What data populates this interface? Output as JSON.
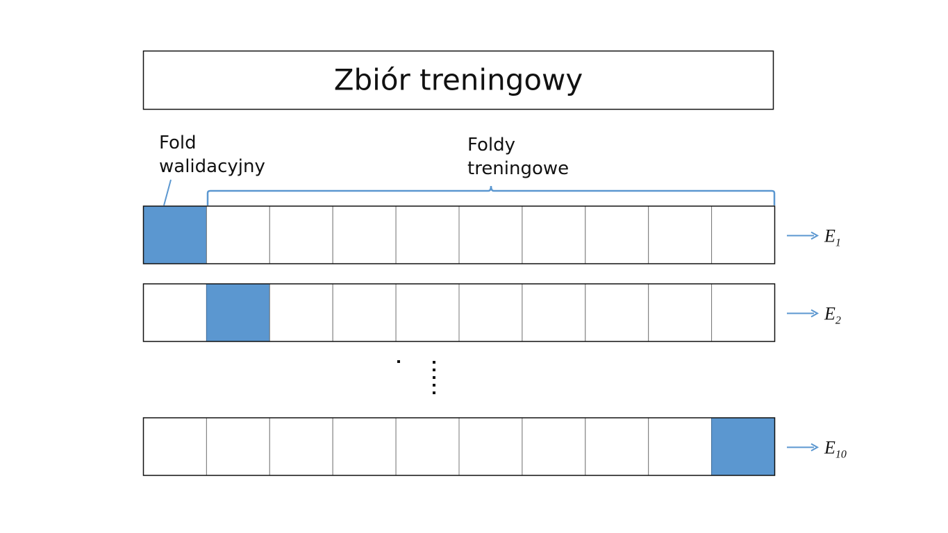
{
  "header": {
    "title": "Zbiór treningowy"
  },
  "validation_label": [
    "Fold",
    "walidacyjny"
  ],
  "training_label": [
    "Foldy",
    "treningowe"
  ],
  "rows": [
    {
      "label": "E",
      "subscript": "1"
    },
    {
      "label": "E",
      "subscript": "2"
    },
    {
      "label": "E",
      "subscript": "10"
    }
  ]
}
